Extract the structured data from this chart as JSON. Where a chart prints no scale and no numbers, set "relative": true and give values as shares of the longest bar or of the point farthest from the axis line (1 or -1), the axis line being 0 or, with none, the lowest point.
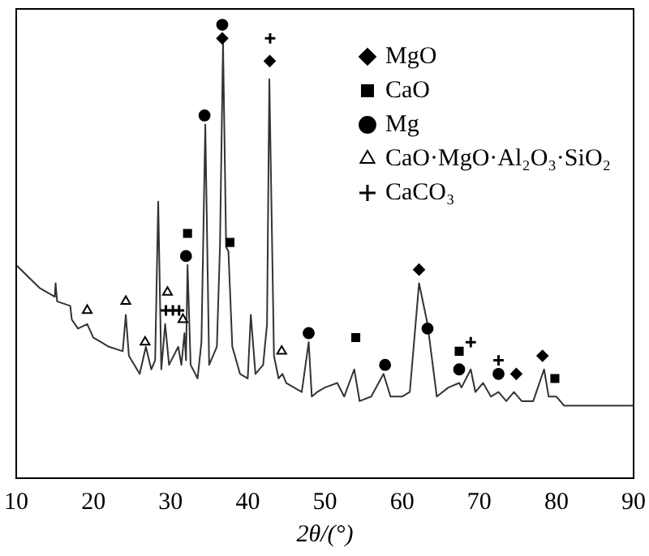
{
  "chart_data": {
    "type": "line",
    "xlabel": "2θ/(°)",
    "relative": true,
    "xlim": [
      10,
      90
    ],
    "xticks": [
      10,
      20,
      30,
      40,
      50,
      60,
      70,
      80,
      90
    ],
    "tick_labels": "x",
    "grid": false,
    "legend": "top right",
    "series": [
      {
        "type": "line",
        "color": "#333333",
        "marker": "none",
        "x": [
          10,
          13,
          15,
          15.1,
          15.3,
          17,
          17.2,
          18,
          19.2,
          20,
          21,
          22,
          23.8,
          24.2,
          24.6,
          26,
          26.8,
          27.5,
          28,
          28.4,
          28.8,
          29.3,
          29.8,
          31,
          31.4,
          31.8,
          32,
          32.2,
          32.6,
          33.5,
          34,
          34.5,
          35,
          36,
          36.4,
          36.8,
          37.2,
          37.5,
          38,
          39,
          40,
          40.4,
          41,
          42,
          42.5,
          42.8,
          43.4,
          44,
          44.5,
          45,
          46,
          47,
          47.9,
          48.3,
          49,
          50,
          51.6,
          52.5,
          53.8,
          54.5,
          56,
          57.6,
          58.5,
          60,
          61,
          62.2,
          63.3,
          64.5,
          66,
          67.4,
          67.7,
          68.9,
          69.5,
          70.5,
          71.5,
          72.5,
          73.5,
          74.5,
          75.5,
          77,
          78.4,
          79,
          80,
          81,
          85,
          88,
          90
        ],
        "values": [
          0.47,
          0.42,
          0.4,
          0.43,
          0.39,
          0.38,
          0.35,
          0.33,
          0.34,
          0.31,
          0.3,
          0.29,
          0.28,
          0.36,
          0.27,
          0.23,
          0.29,
          0.24,
          0.26,
          0.61,
          0.24,
          0.34,
          0.25,
          0.29,
          0.25,
          0.32,
          0.26,
          0.47,
          0.25,
          0.22,
          0.3,
          0.78,
          0.25,
          0.29,
          0.51,
          0.96,
          0.51,
          0.5,
          0.29,
          0.23,
          0.22,
          0.36,
          0.23,
          0.25,
          0.34,
          0.88,
          0.27,
          0.22,
          0.23,
          0.21,
          0.2,
          0.19,
          0.3,
          0.18,
          0.19,
          0.2,
          0.21,
          0.18,
          0.24,
          0.17,
          0.18,
          0.23,
          0.18,
          0.18,
          0.19,
          0.43,
          0.34,
          0.18,
          0.2,
          0.21,
          0.2,
          0.24,
          0.19,
          0.21,
          0.18,
          0.19,
          0.17,
          0.19,
          0.17,
          0.17,
          0.24,
          0.18,
          0.18,
          0.16,
          0.16,
          0.16,
          0.16
        ]
      },
      {
        "type": "scatter",
        "name": "MgO",
        "color": "#000000",
        "marker": "diamond",
        "x": [
          36.7,
          42.85,
          62.2,
          74.8,
          78.2
        ],
        "values": [
          0.97,
          0.92,
          0.46,
          0.23,
          0.27
        ]
      },
      {
        "type": "scatter",
        "name": "CaO",
        "color": "#000000",
        "marker": "square",
        "x": [
          32.2,
          37.7,
          54,
          67.4,
          79.8
        ],
        "values": [
          0.54,
          0.52,
          0.31,
          0.28,
          0.22
        ]
      },
      {
        "type": "scatter",
        "name": "Mg",
        "color": "#000000",
        "marker": "circle",
        "x": [
          34.4,
          36.7,
          32,
          47.9,
          57.8,
          63.3,
          67.4,
          72.5
        ],
        "values": [
          0.8,
          1,
          0.49,
          0.32,
          0.25,
          0.33,
          0.24,
          0.23
        ]
      },
      {
        "type": "scatter",
        "name": "CaO·MgO·Al₂O₃·SiO₂",
        "color": "#000000",
        "marker": "triangle",
        "x": [
          19.2,
          24.2,
          26.7,
          29.6,
          31.6,
          44.4
        ],
        "values": [
          0.37,
          0.39,
          0.3,
          0.41,
          0.35,
          0.28
        ]
      },
      {
        "type": "scatter",
        "name": "CaCO₃",
        "color": "#000000",
        "marker": "cross",
        "x": [
          29.4,
          30.3,
          31.1,
          42.9,
          68.9,
          72.5
        ],
        "values": [
          0.37,
          0.37,
          0.37,
          0.97,
          0.3,
          0.26
        ]
      }
    ]
  }
}
